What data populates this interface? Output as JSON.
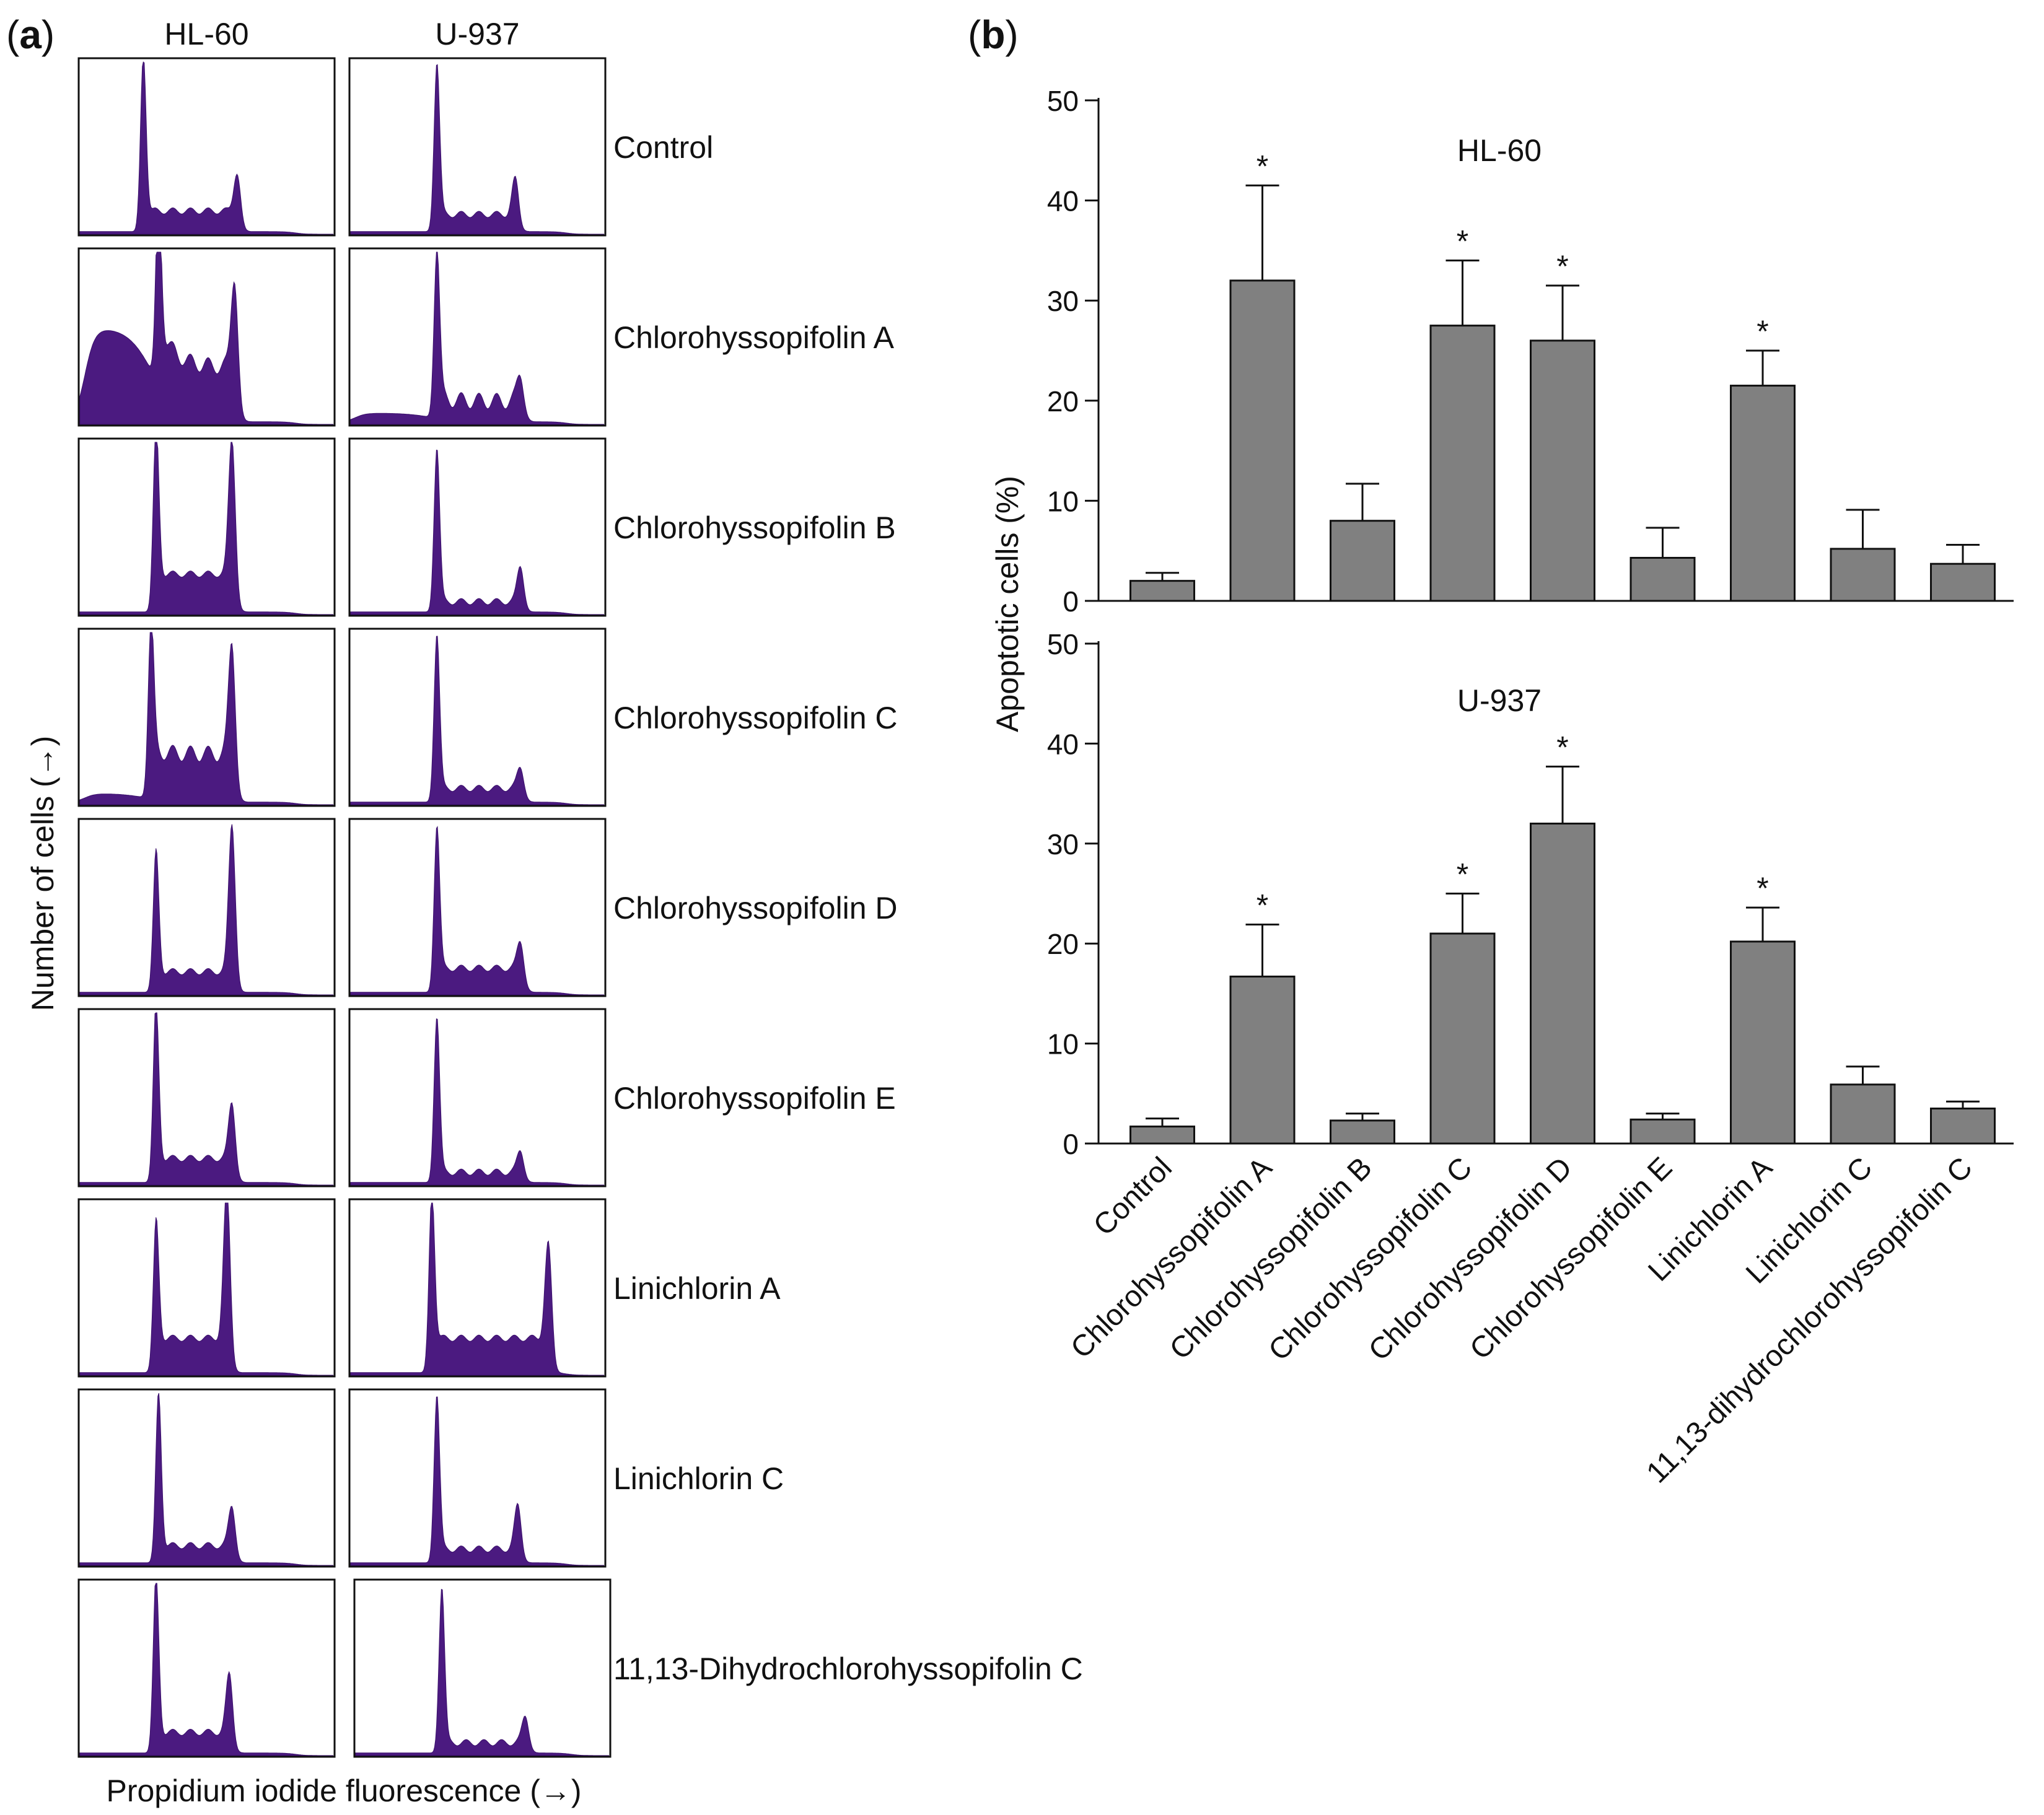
{
  "figure": {
    "panel_a_label": "(a)",
    "panel_b_label": "(b)",
    "panel_a_label_letter": "a",
    "panel_b_label_letter": "b"
  },
  "chart_data": [
    {
      "type": "histogram",
      "panel": "a",
      "columns": [
        "HL-60",
        "U-937"
      ],
      "ylabel": "Number of cells (→)",
      "xlabel": "Propidium iodide fluorescence (→)",
      "fill_color": "#4b1a80",
      "rows": [
        {
          "label": "Control",
          "hl60": {
            "g1_pos": 0.25,
            "g1_height": 0.95,
            "g2_pos": 0.62,
            "g2_height": 0.24,
            "base": 0.12,
            "subg1": 0.0
          },
          "u937": {
            "g1_pos": 0.34,
            "g1_height": 0.92,
            "g2_pos": 0.65,
            "g2_height": 0.22,
            "base": 0.1,
            "subg1": 0.0
          }
        },
        {
          "label": "Chlorohyssopifolin A",
          "hl60": {
            "g1_pos": 0.31,
            "g1_height": 0.92,
            "g2_pos": 0.61,
            "g2_height": 0.57,
            "base": 0.32,
            "subg1": 0.55
          },
          "u937": {
            "g1_pos": 0.34,
            "g1_height": 0.93,
            "g2_pos": 0.67,
            "g2_height": 0.18,
            "base": 0.12,
            "subg1": 0.05
          }
        },
        {
          "label": "Chlorohyssopifolin B",
          "hl60": {
            "g1_pos": 0.3,
            "g1_height": 0.95,
            "g2_pos": 0.6,
            "g2_height": 0.83,
            "base": 0.22,
            "subg1": 0.0
          },
          "u937": {
            "g1_pos": 0.34,
            "g1_height": 0.92,
            "g2_pos": 0.67,
            "g2_height": 0.22,
            "base": 0.06,
            "subg1": 0.0
          }
        },
        {
          "label": "Chlorohyssopifolin C",
          "hl60": {
            "g1_pos": 0.28,
            "g1_height": 0.86,
            "g2_pos": 0.6,
            "g2_height": 0.7,
            "base": 0.28,
            "subg1": 0.05
          },
          "u937": {
            "g1_pos": 0.34,
            "g1_height": 0.93,
            "g2_pos": 0.67,
            "g2_height": 0.14,
            "base": 0.08,
            "subg1": 0.0
          }
        },
        {
          "label": "Chlorohyssopifolin D",
          "hl60": {
            "g1_pos": 0.3,
            "g1_height": 0.74,
            "g2_pos": 0.6,
            "g2_height": 0.88,
            "base": 0.12,
            "subg1": 0.0
          },
          "u937": {
            "g1_pos": 0.34,
            "g1_height": 0.88,
            "g2_pos": 0.67,
            "g2_height": 0.18,
            "base": 0.14,
            "subg1": 0.0
          }
        },
        {
          "label": "Chlorohyssopifolin E",
          "hl60": {
            "g1_pos": 0.3,
            "g1_height": 0.95,
            "g2_pos": 0.6,
            "g2_height": 0.35,
            "base": 0.14,
            "subg1": 0.0
          },
          "u937": {
            "g1_pos": 0.34,
            "g1_height": 0.93,
            "g2_pos": 0.67,
            "g2_height": 0.14,
            "base": 0.06,
            "subg1": 0.0
          }
        },
        {
          "label": "Linichlorin A",
          "hl60": {
            "g1_pos": 0.3,
            "g1_height": 0.75,
            "g2_pos": 0.58,
            "g2_height": 0.9,
            "base": 0.2,
            "subg1": 0.0
          },
          "u937": {
            "g1_pos": 0.32,
            "g1_height": 0.93,
            "g2_pos": 0.78,
            "g2_height": 0.58,
            "base": 0.2,
            "subg1": 0.0
          }
        },
        {
          "label": "Linichlorin C",
          "hl60": {
            "g1_pos": 0.31,
            "g1_height": 0.92,
            "g2_pos": 0.6,
            "g2_height": 0.25,
            "base": 0.1,
            "subg1": 0.0
          },
          "u937": {
            "g1_pos": 0.34,
            "g1_height": 0.93,
            "g2_pos": 0.66,
            "g2_height": 0.27,
            "base": 0.08,
            "subg1": 0.0
          }
        },
        {
          "label": "11,13-Dihydrochlorohyssopifolin C",
          "hl60": {
            "g1_pos": 0.3,
            "g1_height": 0.95,
            "g2_pos": 0.59,
            "g2_height": 0.36,
            "base": 0.12,
            "subg1": 0.0
          },
          "u937": {
            "g1_pos": 0.34,
            "g1_height": 0.93,
            "g2_pos": 0.67,
            "g2_height": 0.17,
            "base": 0.06,
            "subg1": 0.0
          }
        }
      ]
    },
    {
      "type": "bar",
      "panel": "b",
      "ylabel": "Apoptotic cells (%)",
      "ylim": [
        0,
        50
      ],
      "yticks": [
        0,
        10,
        20,
        30,
        40,
        50
      ],
      "categories": [
        "Control",
        "Chlorohyssopifolin A",
        "Chlorohyssopifolin B",
        "Chlorohyssopifolin C",
        "Chlorohyssopifolin D",
        "Chlorohyssopifolin E",
        "Linichlorin A",
        "Linichlorin C",
        "11,13-dihydrochlorohyssopifolin C"
      ],
      "bar_color": "#808080",
      "significance_marker": "*",
      "series": [
        {
          "name": "HL-60",
          "values": [
            2,
            32,
            8,
            27.5,
            26,
            4.3,
            21.5,
            5.2,
            3.7
          ],
          "errors": [
            0.8,
            9.5,
            3.7,
            6.5,
            5.5,
            3,
            3.5,
            3.9,
            1.9
          ],
          "significant": [
            false,
            true,
            false,
            true,
            true,
            false,
            true,
            false,
            false
          ]
        },
        {
          "name": "U-937",
          "values": [
            1.7,
            16.7,
            2.3,
            21,
            32,
            2.4,
            20.2,
            5.9,
            3.5
          ],
          "errors": [
            0.8,
            5.2,
            0.7,
            4,
            5.7,
            0.6,
            3.4,
            1.8,
            0.7
          ],
          "significant": [
            false,
            true,
            false,
            true,
            true,
            false,
            true,
            false,
            false
          ]
        }
      ]
    }
  ]
}
